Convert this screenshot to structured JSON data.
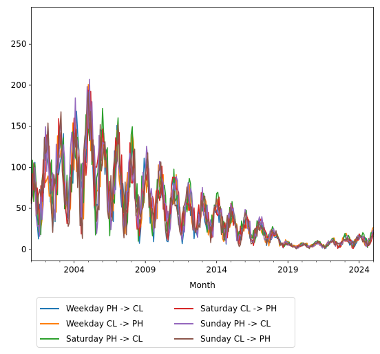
{
  "chart_data": {
    "type": "line",
    "xlabel": "Month",
    "ylabel": "",
    "title": "",
    "xlim": [
      "2001-01",
      "2025-01"
    ],
    "ylim": [
      -14,
      295
    ],
    "x_ticks": [
      "2004",
      "2009",
      "2014",
      "2019",
      "2024"
    ],
    "y_ticks": [
      0,
      50,
      100,
      150,
      200,
      250
    ],
    "grid": false,
    "legend_position": "below",
    "series": [
      {
        "name": "Weekday PH -> CL",
        "color": "#1f77b4",
        "base": [
          62,
          78,
          95,
          88,
          100,
          110,
          92,
          84,
          78,
          68,
          60,
          55,
          48,
          42,
          38,
          35,
          30,
          26,
          22,
          20,
          14,
          5,
          4,
          5,
          6,
          8,
          10,
          12,
          14
        ]
      },
      {
        "name": "Weekday CL -> PH",
        "color": "#ff7f0e",
        "base": [
          64,
          80,
          96,
          90,
          102,
          112,
          94,
          86,
          80,
          70,
          62,
          56,
          50,
          44,
          40,
          36,
          32,
          28,
          24,
          21,
          15,
          6,
          5,
          6,
          7,
          9,
          11,
          13,
          15
        ]
      },
      {
        "name": "Saturday PH -> CL",
        "color": "#2ca02c",
        "base": [
          60,
          82,
          100,
          92,
          104,
          116,
          96,
          88,
          82,
          72,
          64,
          58,
          52,
          46,
          42,
          38,
          34,
          29,
          25,
          22,
          15,
          5,
          4,
          5,
          7,
          9,
          11,
          13,
          15
        ]
      },
      {
        "name": "Saturday CL -> PH",
        "color": "#d62728",
        "base": [
          58,
          80,
          98,
          90,
          102,
          114,
          94,
          86,
          80,
          70,
          62,
          57,
          51,
          45,
          41,
          37,
          33,
          28,
          24,
          21,
          14,
          5,
          4,
          5,
          6,
          8,
          10,
          12,
          14
        ]
      },
      {
        "name": "Sunday PH -> CL",
        "color": "#9467bd",
        "base": [
          56,
          84,
          104,
          94,
          108,
          120,
          98,
          88,
          82,
          72,
          64,
          58,
          52,
          46,
          42,
          38,
          34,
          29,
          25,
          22,
          14,
          5,
          4,
          5,
          6,
          8,
          10,
          12,
          14
        ]
      },
      {
        "name": "Sunday CL -> PH",
        "color": "#8c564b",
        "base": [
          57,
          83,
          102,
          93,
          106,
          118,
          97,
          87,
          81,
          71,
          63,
          57,
          51,
          45,
          41,
          37,
          33,
          28,
          24,
          21,
          14,
          5,
          4,
          5,
          6,
          8,
          10,
          12,
          14
        ]
      }
    ]
  },
  "legend": {
    "items": [
      {
        "label": "Weekday PH -> CL",
        "color": "#1f77b4"
      },
      {
        "label": "Weekday CL -> PH",
        "color": "#ff7f0e"
      },
      {
        "label": "Saturday PH -> CL",
        "color": "#2ca02c"
      },
      {
        "label": "Saturday CL -> PH",
        "color": "#d62728"
      },
      {
        "label": "Sunday PH -> CL",
        "color": "#9467bd"
      },
      {
        "label": "Sunday CL -> PH",
        "color": "#8c564b"
      }
    ]
  }
}
